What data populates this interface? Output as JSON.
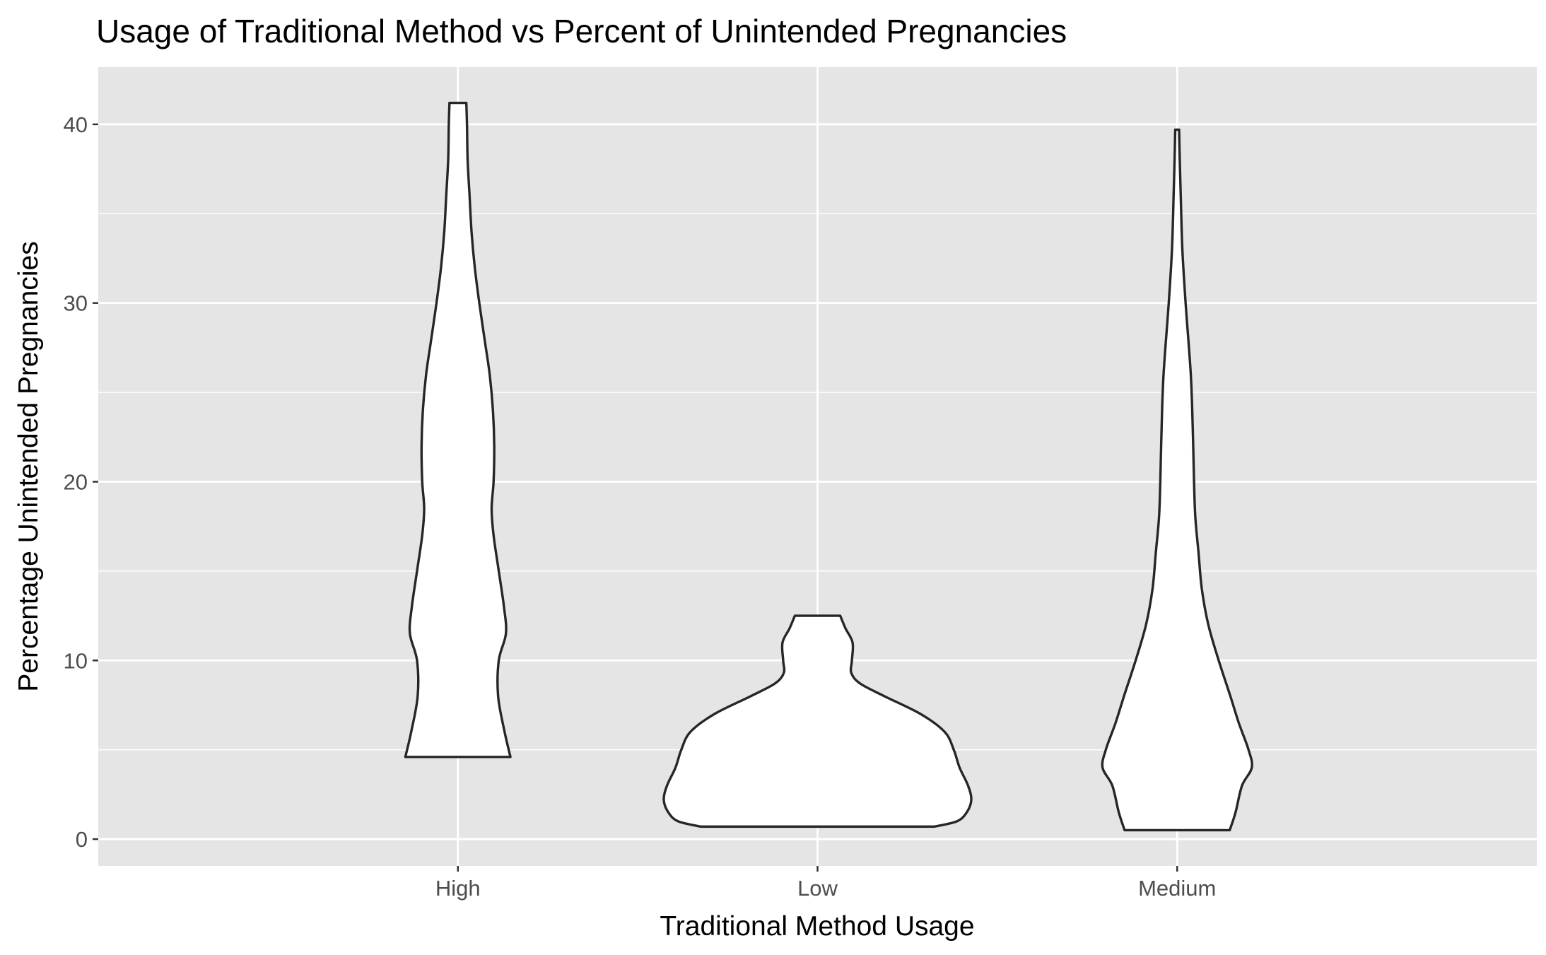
{
  "chart_data": {
    "type": "violin",
    "title": "Usage of Traditional Method vs Percent of Unintended Pregnancies",
    "xlabel": "Traditional Method Usage",
    "ylabel": "Percentage Unintended Pregnancies",
    "categories": [
      "High",
      "Low",
      "Medium"
    ],
    "ylim": [
      -1.5,
      43.2
    ],
    "yticks": [
      0,
      10,
      20,
      30,
      40
    ],
    "grid": true,
    "legend": "none",
    "colors": {
      "panel_background": "#e5e5e5",
      "grid_major": "#ffffff",
      "violin_fill": "#ffffff",
      "violin_outline": "#262626",
      "tick_label": "#4d4d4d"
    },
    "violins": [
      {
        "category": "High",
        "min": 4.6,
        "max": 41.2,
        "density": [
          [
            4.6,
            0.081
          ],
          [
            6.0,
            0.072
          ],
          [
            8.0,
            0.062
          ],
          [
            10.0,
            0.063
          ],
          [
            11.5,
            0.074
          ],
          [
            13.0,
            0.071
          ],
          [
            15.0,
            0.063
          ],
          [
            17.0,
            0.055
          ],
          [
            18.5,
            0.052
          ],
          [
            20.0,
            0.055
          ],
          [
            22.0,
            0.056
          ],
          [
            24.0,
            0.054
          ],
          [
            26.0,
            0.049
          ],
          [
            28.0,
            0.041
          ],
          [
            30.0,
            0.033
          ],
          [
            32.0,
            0.026
          ],
          [
            34.0,
            0.021
          ],
          [
            36.0,
            0.018
          ],
          [
            38.0,
            0.015
          ],
          [
            40.0,
            0.014
          ],
          [
            41.2,
            0.013
          ]
        ]
      },
      {
        "category": "Low",
        "min": 0.7,
        "max": 12.5,
        "density": [
          [
            0.7,
            0.18
          ],
          [
            1.0,
            0.215
          ],
          [
            1.5,
            0.23
          ],
          [
            2.2,
            0.237
          ],
          [
            3.0,
            0.232
          ],
          [
            4.0,
            0.219
          ],
          [
            5.0,
            0.21
          ],
          [
            6.0,
            0.196
          ],
          [
            7.0,
            0.159
          ],
          [
            8.0,
            0.103
          ],
          [
            8.7,
            0.066
          ],
          [
            9.3,
            0.052
          ],
          [
            10.0,
            0.053
          ],
          [
            11.0,
            0.054
          ],
          [
            11.8,
            0.043
          ],
          [
            12.5,
            0.035
          ]
        ]
      },
      {
        "category": "Medium",
        "min": 0.5,
        "max": 39.7,
        "density": [
          [
            0.5,
            0.081
          ],
          [
            1.5,
            0.09
          ],
          [
            3.0,
            0.1
          ],
          [
            4.0,
            0.115
          ],
          [
            5.0,
            0.11
          ],
          [
            6.5,
            0.095
          ],
          [
            8.0,
            0.082
          ],
          [
            10.0,
            0.064
          ],
          [
            12.0,
            0.048
          ],
          [
            14.0,
            0.038
          ],
          [
            16.0,
            0.033
          ],
          [
            18.0,
            0.028
          ],
          [
            20.0,
            0.026
          ],
          [
            23.0,
            0.024
          ],
          [
            26.0,
            0.021
          ],
          [
            30.0,
            0.013
          ],
          [
            33.0,
            0.008
          ],
          [
            36.0,
            0.0055
          ],
          [
            38.0,
            0.004
          ],
          [
            39.7,
            0.003
          ]
        ]
      }
    ]
  }
}
